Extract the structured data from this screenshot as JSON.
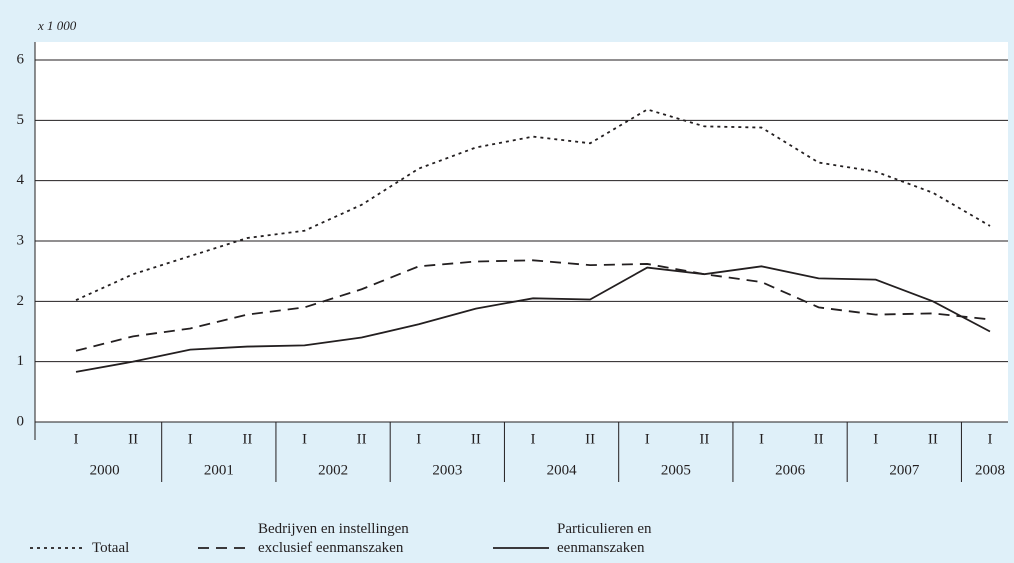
{
  "chart_data": {
    "type": "line",
    "unit_label": "x 1 000",
    "categories": [
      "I",
      "II",
      "I",
      "II",
      "I",
      "II",
      "I",
      "II",
      "I",
      "II",
      "I",
      "II",
      "I",
      "II",
      "I",
      "II",
      "I"
    ],
    "years": [
      "2000",
      "2001",
      "2002",
      "2003",
      "2004",
      "2005",
      "2006",
      "2007",
      "2008"
    ],
    "ylim": [
      0,
      6
    ],
    "yticks": [
      0,
      1,
      2,
      3,
      4,
      5,
      6
    ],
    "grid": true,
    "series": [
      {
        "name": "Totaal",
        "color": "#231f20",
        "dash": "dotted",
        "values": [
          2.02,
          2.45,
          2.75,
          3.05,
          3.17,
          3.6,
          4.2,
          4.55,
          4.73,
          4.62,
          5.18,
          4.9,
          4.88,
          4.3,
          4.15,
          3.8,
          3.25
        ]
      },
      {
        "name": "Bedrijven en instellingen\nexclusief eenmanszaken",
        "color": "#231f20",
        "dash": "dashed",
        "values": [
          1.18,
          1.42,
          1.55,
          1.78,
          1.9,
          2.2,
          2.58,
          2.66,
          2.68,
          2.6,
          2.62,
          2.45,
          2.32,
          1.9,
          1.78,
          1.8,
          1.7
        ]
      },
      {
        "name": "Particulieren en\neenmanszaken",
        "color": "#231f20",
        "dash": "solid",
        "values": [
          0.83,
          1.0,
          1.2,
          1.25,
          1.27,
          1.4,
          1.62,
          1.88,
          2.05,
          2.03,
          2.56,
          2.45,
          2.58,
          2.38,
          2.36,
          2.0,
          1.5
        ]
      }
    ]
  }
}
